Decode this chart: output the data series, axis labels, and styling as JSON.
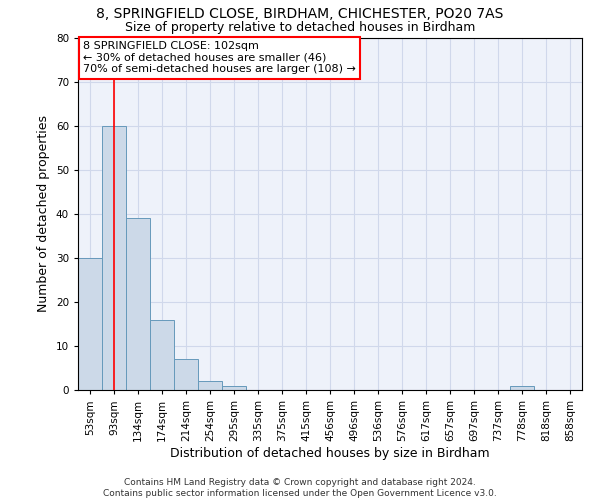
{
  "title1": "8, SPRINGFIELD CLOSE, BIRDHAM, CHICHESTER, PO20 7AS",
  "title2": "Size of property relative to detached houses in Birdham",
  "xlabel": "Distribution of detached houses by size in Birdham",
  "ylabel": "Number of detached properties",
  "footnote": "Contains HM Land Registry data © Crown copyright and database right 2024.\nContains public sector information licensed under the Open Government Licence v3.0.",
  "bin_labels": [
    "53sqm",
    "93sqm",
    "134sqm",
    "174sqm",
    "214sqm",
    "254sqm",
    "295sqm",
    "335sqm",
    "375sqm",
    "415sqm",
    "456sqm",
    "496sqm",
    "536sqm",
    "576sqm",
    "617sqm",
    "657sqm",
    "697sqm",
    "737sqm",
    "778sqm",
    "818sqm",
    "858sqm"
  ],
  "bar_heights": [
    30,
    60,
    39,
    16,
    7,
    2,
    1,
    0,
    0,
    0,
    0,
    0,
    0,
    0,
    0,
    0,
    0,
    0,
    1,
    0,
    0
  ],
  "bar_color": "#ccd9e8",
  "bar_edge_color": "#6699bb",
  "red_line_x": 1.0,
  "annotation_text": "8 SPRINGFIELD CLOSE: 102sqm\n← 30% of detached houses are smaller (46)\n70% of semi-detached houses are larger (108) →",
  "annotation_box_color": "white",
  "annotation_box_edge": "red",
  "ylim": [
    0,
    80
  ],
  "yticks": [
    0,
    10,
    20,
    30,
    40,
    50,
    60,
    70,
    80
  ],
  "grid_color": "#d0d8eb",
  "background_color": "#eef2fa",
  "title1_fontsize": 10,
  "title2_fontsize": 9,
  "tick_fontsize": 7.5,
  "label_fontsize": 9,
  "footnote_fontsize": 6.5
}
